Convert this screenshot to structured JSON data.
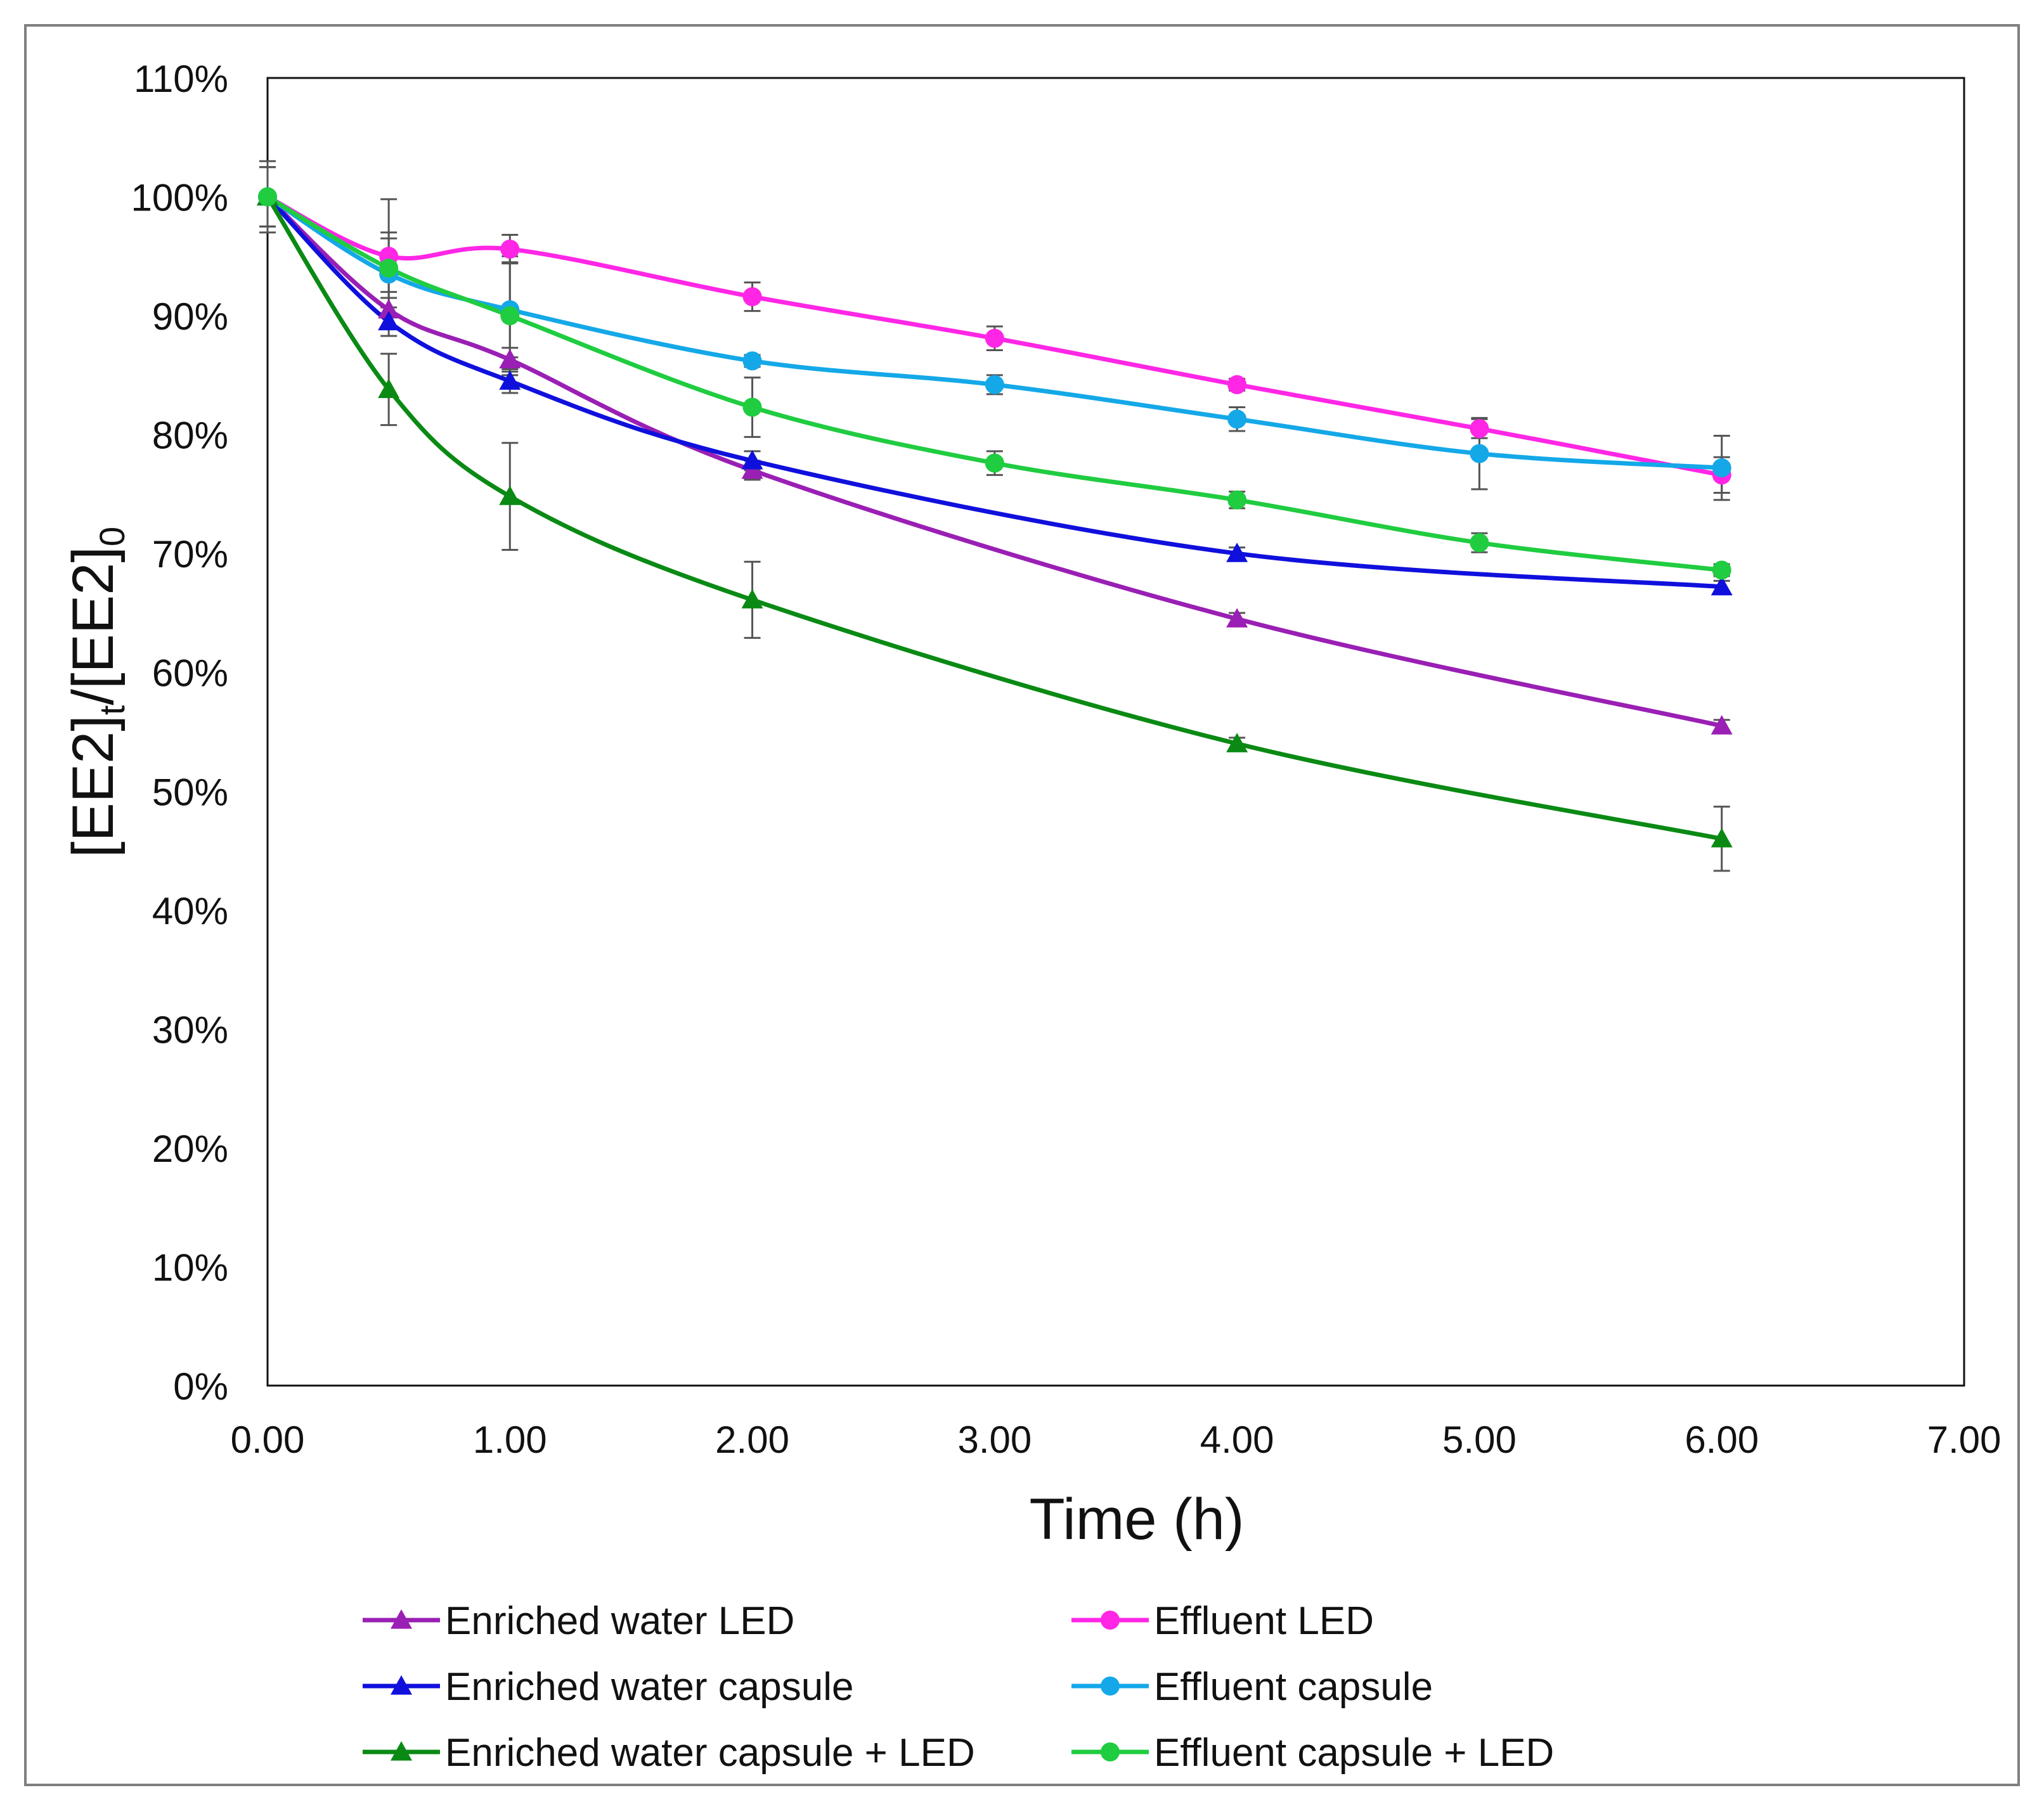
{
  "chart_data": {
    "type": "line",
    "title": "",
    "xlabel": "Time (h)",
    "ylabel": {
      "base1": "[EE2]",
      "sub1": "t",
      "slash": "/",
      "base2": "[EE2]",
      "sub2": "0"
    },
    "xlim": [
      0,
      7
    ],
    "ylim": [
      0,
      110
    ],
    "x_ticks": [
      "0.00",
      "1.00",
      "2.00",
      "3.00",
      "4.00",
      "5.00",
      "6.00",
      "7.00"
    ],
    "y_ticks": [
      "0%",
      "10%",
      "20%",
      "30%",
      "40%",
      "50%",
      "60%",
      "70%",
      "80%",
      "90%",
      "100%",
      "110%"
    ],
    "grid": false,
    "legend_position": "bottom",
    "series": [
      {
        "name": "Enriched water LED",
        "color": "#9a1fb4",
        "marker": "triangle",
        "x": [
          0,
          0.5,
          1,
          2,
          4,
          6
        ],
        "y": [
          100,
          90.5,
          86.3,
          77.0,
          64.5,
          55.5
        ],
        "err": [
          0,
          1.5,
          1.0,
          0.8,
          0.5,
          0.5
        ]
      },
      {
        "name": "Enriched water capsule",
        "color": "#1010dd",
        "marker": "triangle",
        "x": [
          0,
          0.5,
          1,
          2,
          4,
          6
        ],
        "y": [
          100,
          89.5,
          84.5,
          77.8,
          70.0,
          67.2
        ],
        "err": [
          0,
          1.2,
          1.0,
          0.8,
          0.5,
          0.5
        ]
      },
      {
        "name": "Enriched water capsule + LED",
        "color": "#0a8a14",
        "marker": "triangle",
        "x": [
          0,
          0.5,
          1,
          2,
          4,
          6
        ],
        "y": [
          100,
          83.8,
          74.8,
          66.1,
          54.0,
          46.0
        ],
        "err": [
          2.5,
          3.0,
          4.5,
          3.2,
          0.5,
          2.7
        ]
      },
      {
        "name": "Effluent LED",
        "color": "#ff26e6",
        "marker": "circle",
        "x": [
          0,
          0.5,
          1,
          2,
          3,
          4,
          5,
          6
        ],
        "y": [
          100,
          95.0,
          95.6,
          91.6,
          88.1,
          84.2,
          80.5,
          76.6
        ],
        "err": [
          2.5,
          4.8,
          1.2,
          1.2,
          1.0,
          0.5,
          0.8,
          1.5
        ]
      },
      {
        "name": "Effluent capsule",
        "color": "#14a8e8",
        "marker": "circle",
        "x": [
          0,
          0.5,
          1,
          2,
          3,
          4,
          5,
          6
        ],
        "y": [
          100,
          93.5,
          90.5,
          86.2,
          84.2,
          81.3,
          78.4,
          77.2
        ],
        "err": [
          2.5,
          3.5,
          4.0,
          0.5,
          0.8,
          1.0,
          3.0,
          2.7
        ]
      },
      {
        "name": "Effluent capsule + LED",
        "color": "#20cc40",
        "marker": "circle",
        "x": [
          0,
          0.5,
          1,
          2,
          3,
          4,
          5,
          6
        ],
        "y": [
          100,
          94.0,
          90.0,
          82.3,
          77.6,
          74.5,
          70.9,
          68.6
        ],
        "err": [
          3.0,
          2.5,
          5.0,
          2.5,
          1.0,
          0.7,
          0.8,
          0.5
        ]
      }
    ]
  }
}
